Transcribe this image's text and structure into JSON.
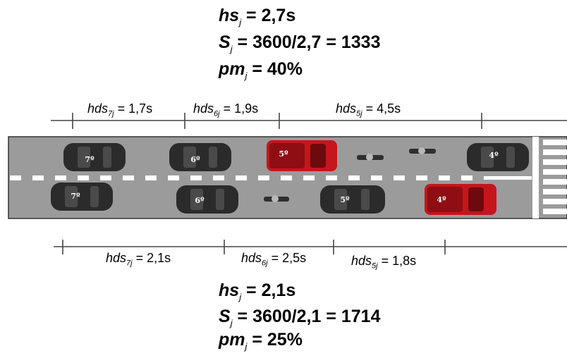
{
  "top": {
    "hs": {
      "sym": "hs",
      "sub": "j",
      "rest": " = 2,7s"
    },
    "S": {
      "sym": "S",
      "sub": "j",
      "rest": " = 3600/2,7 = 1333"
    },
    "pm": {
      "sym": "pm",
      "sub": "j",
      "rest": " = 40%"
    },
    "headways": [
      {
        "sym": "hds",
        "sub": "7j",
        "rest": " = 1,7s"
      },
      {
        "sym": "hds",
        "sub": "6j",
        "rest": " = 1,9s"
      },
      {
        "sym": "hds",
        "sub": "5j",
        "rest": " = 4,5s"
      }
    ]
  },
  "bottom": {
    "hs": {
      "sym": "hs",
      "sub": "j",
      "rest": " = 2,1s"
    },
    "S": {
      "sym": "S",
      "sub": "j",
      "rest": " = 3600/2,1 = 1714"
    },
    "pm": {
      "sym": "pm",
      "sub": "j",
      "rest": " = 25%"
    },
    "headways": [
      {
        "sym": "hds",
        "sub": "7j",
        "rest": " = 2,1s"
      },
      {
        "sym": "hds",
        "sub": "6j",
        "rest": " = 2,5s"
      },
      {
        "sym": "hds",
        "sub": "5j",
        "rest": " = 1,8s"
      }
    ]
  },
  "vehicles": {
    "top_lane": [
      "7º",
      "6º",
      "5º",
      "4º"
    ],
    "bottom_lane": [
      "7º",
      "6º",
      "5º",
      "4º"
    ]
  },
  "colors": {
    "road": "#9b9b9b",
    "car": "#2b2b2b",
    "truck": "#c4161c",
    "marking": "#ffffff"
  }
}
